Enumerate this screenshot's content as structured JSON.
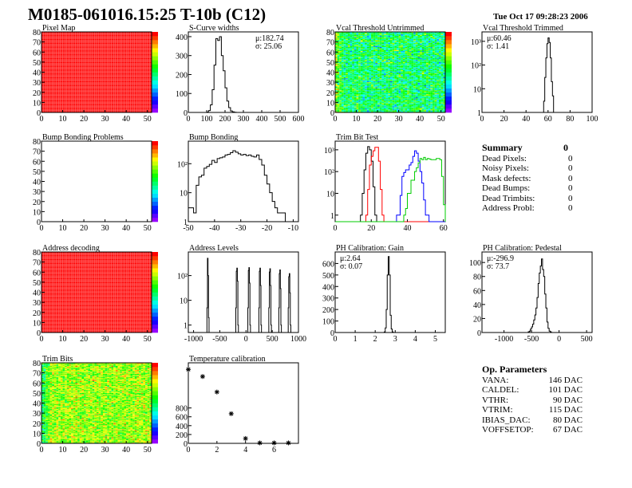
{
  "header": {
    "title": "M0185-061016.15:25 T-10b (C12)",
    "timestamp": "Tue Oct 17 09:28:23 2006"
  },
  "summary": {
    "title": "Summary",
    "total": "0",
    "items": [
      {
        "label": "Dead Pixels:",
        "value": "0"
      },
      {
        "label": "Noisy Pixels:",
        "value": "0"
      },
      {
        "label": "Mask defects:",
        "value": "0"
      },
      {
        "label": "Dead Bumps:",
        "value": "0"
      },
      {
        "label": "Dead Trimbits:",
        "value": "0"
      },
      {
        "label": "Address Probl:",
        "value": "0"
      }
    ]
  },
  "op_params": {
    "title": "Op. Parameters",
    "items": [
      {
        "label": "VANA:",
        "value": "146 DAC"
      },
      {
        "label": "CALDEL:",
        "value": "101 DAC"
      },
      {
        "label": "VTHR:",
        "value": "90 DAC"
      },
      {
        "label": "VTRIM:",
        "value": "115 DAC"
      },
      {
        "label": "IBIAS_DAC:",
        "value": "80 DAC"
      },
      {
        "label": "VOFFSETOP:",
        "value": "67 DAC"
      }
    ]
  },
  "chart_data": [
    {
      "type": "heatmap",
      "title": "Pixel Map",
      "nx": 52,
      "ny": 80,
      "xlim": [
        0,
        52
      ],
      "ylim": [
        0,
        80
      ],
      "zlim": [
        0,
        10
      ],
      "z_mean": 10,
      "z_spread": 0,
      "left_edge_shift": 0,
      "xticks": [
        "0",
        "10",
        "20",
        "30",
        "40",
        "50"
      ],
      "yticks": [
        "0",
        "10",
        "20",
        "30",
        "40",
        "50",
        "60",
        "70",
        "80"
      ]
    },
    {
      "type": "bar",
      "title": "S-Curve widths",
      "xlim": [
        0,
        600
      ],
      "ylim": [
        0,
        425
      ],
      "log": false,
      "xticks": [
        "0",
        "100",
        "200",
        "300",
        "400",
        "500",
        "600"
      ],
      "yticks": [
        "0",
        "100",
        "200",
        "300",
        "400"
      ],
      "stats": [
        "μ:182.74",
        "σ: 25.06"
      ],
      "series": [
        {
          "color": "#000000",
          "x0": 100,
          "bw": 10,
          "values": [
            2,
            10,
            40,
            120,
            250,
            390,
            380,
            400,
            300,
            220,
            130,
            60,
            25,
            8,
            3,
            1
          ]
        }
      ]
    },
    {
      "type": "heatmap",
      "title": "Vcal Threshold Untrimmed",
      "nx": 52,
      "ny": 80,
      "xlim": [
        0,
        52
      ],
      "ylim": [
        0,
        80
      ],
      "zlim": [
        80,
        125
      ],
      "z_mean": 102,
      "z_spread": 5,
      "left_edge_shift": 8,
      "xticks": [
        "0",
        "10",
        "20",
        "30",
        "40",
        "50"
      ],
      "yticks": [
        "0",
        "10",
        "20",
        "30",
        "40",
        "50",
        "60",
        "70",
        "80"
      ]
    },
    {
      "type": "bar",
      "title": "Vcal Threshold Trimmed",
      "xlim": [
        0,
        100
      ],
      "ylim": [
        1,
        2500
      ],
      "log": true,
      "xticks": [
        "0",
        "20",
        "40",
        "60",
        "80",
        "100"
      ],
      "yticks": [
        "1",
        "10",
        "10²",
        "10³"
      ],
      "stats": [
        "μ:60.46",
        "σ: 1.41"
      ],
      "series": [
        {
          "color": "#000000",
          "x0": 55,
          "bw": 1,
          "values": [
            1,
            3,
            30,
            200,
            800,
            1400,
            900,
            200,
            20,
            5,
            1
          ]
        }
      ]
    },
    {
      "type": "heatmap",
      "title": "Bump Bonding Problems",
      "nx": 52,
      "ny": 80,
      "xlim": [
        0,
        52
      ],
      "ylim": [
        0,
        80
      ],
      "zlim": [
        0,
        1
      ],
      "z_mean": null,
      "z_spread": 0,
      "left_edge_shift": 0,
      "xticks": [
        "0",
        "10",
        "20",
        "30",
        "40",
        "50"
      ],
      "yticks": [
        "0",
        "10",
        "20",
        "30",
        "40",
        "50",
        "60",
        "70",
        "80"
      ]
    },
    {
      "type": "bar",
      "title": "Bump Bonding",
      "xlim": [
        -50,
        -8
      ],
      "ylim": [
        1,
        600
      ],
      "log": true,
      "xticks": [
        "-50",
        "-40",
        "-30",
        "-20",
        "-10"
      ],
      "yticks": [
        "1",
        "10",
        "10²"
      ],
      "series": [
        {
          "color": "#000000",
          "x0": -50,
          "bw": 1,
          "values": [
            3,
            3,
            2,
            18,
            35,
            40,
            70,
            80,
            95,
            130,
            110,
            150,
            160,
            170,
            200,
            210,
            240,
            280,
            250,
            220,
            200,
            210,
            190,
            200,
            180,
            170,
            200,
            140,
            90,
            40,
            20,
            10,
            5,
            3,
            2,
            2,
            2,
            1
          ]
        }
      ]
    },
    {
      "type": "bar",
      "title": "Trim Bit Test",
      "xlim": [
        0,
        61
      ],
      "ylim": [
        0.5,
        2500
      ],
      "log": true,
      "xticks": [
        "0",
        "20",
        "40",
        "60"
      ],
      "yticks": [
        "1",
        "10",
        "10²",
        "10³"
      ],
      "series": [
        {
          "color": "#000000",
          "x0": 14,
          "bw": 1,
          "values": [
            1,
            10,
            120,
            700,
            1400,
            1000,
            300,
            20,
            1
          ]
        },
        {
          "color": "#ff0000",
          "x0": 17,
          "bw": 1,
          "values": [
            1,
            15,
            200,
            500,
            900,
            1300,
            1300,
            300,
            15,
            1
          ]
        },
        {
          "color": "#0000ff",
          "x0": 34,
          "bw": 1,
          "values": [
            1,
            1,
            8,
            60,
            90,
            120,
            120,
            200,
            260,
            500,
            900,
            700,
            300,
            100,
            30,
            5,
            1,
            1
          ]
        },
        {
          "color": "#00cc00",
          "x0": 38,
          "bw": 1,
          "values": [
            1,
            2,
            10,
            10,
            40,
            40,
            100,
            150,
            250,
            400,
            350,
            450,
            350,
            400,
            380,
            350,
            350,
            350,
            400,
            400,
            350,
            60,
            3
          ]
        }
      ]
    },
    {
      "type": "blank"
    },
    {
      "type": "heatmap",
      "title": "Address decoding",
      "nx": 52,
      "ny": 80,
      "xlim": [
        0,
        52
      ],
      "ylim": [
        0,
        80
      ],
      "zlim": [
        0,
        1
      ],
      "z_mean": 1,
      "z_spread": 0,
      "left_edge_shift": 0,
      "xticks": [
        "0",
        "10",
        "20",
        "30",
        "40",
        "50"
      ],
      "yticks": [
        "0",
        "10",
        "20",
        "30",
        "40",
        "50",
        "60",
        "70",
        "80"
      ]
    },
    {
      "type": "bar",
      "title": "Address Levels",
      "xlim": [
        -1100,
        1000
      ],
      "ylim": [
        0.5,
        900
      ],
      "log": true,
      "xticks": [
        "-1000",
        "-500",
        "0",
        "500",
        "1000"
      ],
      "yticks": [
        "1",
        "10",
        "10²"
      ],
      "series": [
        {
          "color": "#000000",
          "x0": -745,
          "bw": 10,
          "values": [
            5,
            500,
            100,
            2
          ]
        },
        {
          "color": "#000000",
          "x0": -195,
          "bw": 10,
          "values": [
            5,
            150,
            200,
            60,
            1
          ]
        },
        {
          "color": "#000000",
          "x0": 35,
          "bw": 10,
          "values": [
            5,
            160,
            210,
            50,
            1
          ]
        },
        {
          "color": "#000000",
          "x0": 245,
          "bw": 10,
          "values": [
            5,
            150,
            200,
            40,
            1
          ]
        },
        {
          "color": "#000000",
          "x0": 435,
          "bw": 10,
          "values": [
            5,
            140,
            190,
            40,
            1
          ]
        },
        {
          "color": "#000000",
          "x0": 625,
          "bw": 10,
          "values": [
            5,
            120,
            170,
            30,
            1
          ]
        },
        {
          "color": "#000000",
          "x0": 805,
          "bw": 10,
          "values": [
            5,
            90,
            120,
            20,
            1
          ]
        }
      ]
    },
    {
      "type": "bar",
      "title": "PH Calibration: Gain",
      "xlim": [
        0,
        5.5
      ],
      "ylim": [
        0,
        700
      ],
      "log": false,
      "xticks": [
        "0",
        "1",
        "2",
        "3",
        "4",
        "5"
      ],
      "yticks": [
        "0",
        "100",
        "200",
        "300",
        "400",
        "500",
        "600"
      ],
      "stats": [
        "μ:2.64",
        "σ: 0.07"
      ],
      "series": [
        {
          "color": "#000000",
          "x0": 2.45,
          "bw": 0.05,
          "values": [
            5,
            40,
            200,
            500,
            660,
            500,
            150,
            30,
            5
          ]
        }
      ]
    },
    {
      "type": "bar",
      "title": "PH Calibration: Pedestal",
      "xlim": [
        -1400,
        600
      ],
      "ylim": [
        0,
        115
      ],
      "log": false,
      "xticks": [
        "-1000",
        "-500",
        "0",
        "500"
      ],
      "yticks": [
        "0",
        "20",
        "40",
        "60",
        "80",
        "100"
      ],
      "stats": [
        "μ:-296.9",
        "σ: 73.7"
      ],
      "series": [
        {
          "color": "#000000",
          "x0": -560,
          "bw": 20,
          "values": [
            1,
            2,
            5,
            8,
            12,
            18,
            25,
            35,
            50,
            70,
            85,
            95,
            105,
            90,
            80,
            55,
            35,
            15,
            6,
            2,
            1,
            0,
            0,
            0,
            0
          ]
        }
      ]
    },
    {
      "type": "heatmap",
      "title": "Trim Bits",
      "nx": 52,
      "ny": 80,
      "xlim": [
        0,
        52
      ],
      "ylim": [
        0,
        80
      ],
      "zlim": [
        0,
        16
      ],
      "z_mean": 11,
      "z_spread": 1.4,
      "left_edge_shift": -4,
      "xticks": [
        "0",
        "10",
        "20",
        "30",
        "40",
        "50"
      ],
      "yticks": [
        "0",
        "10",
        "20",
        "30",
        "40",
        "50",
        "60",
        "70",
        "80"
      ]
    },
    {
      "type": "scatter",
      "title": "Temperature calibration",
      "xlim": [
        0,
        7.7
      ],
      "ylim": [
        0,
        1820
      ],
      "log": false,
      "xticks": [
        "0",
        "2",
        "4",
        "6"
      ],
      "yticks": [
        "0",
        "200",
        "400",
        "600",
        "800"
      ],
      "x": [
        0,
        1,
        2,
        3,
        4,
        5,
        6,
        7
      ],
      "y": [
        1670,
        1510,
        1160,
        670,
        110,
        10,
        10,
        10
      ]
    }
  ]
}
